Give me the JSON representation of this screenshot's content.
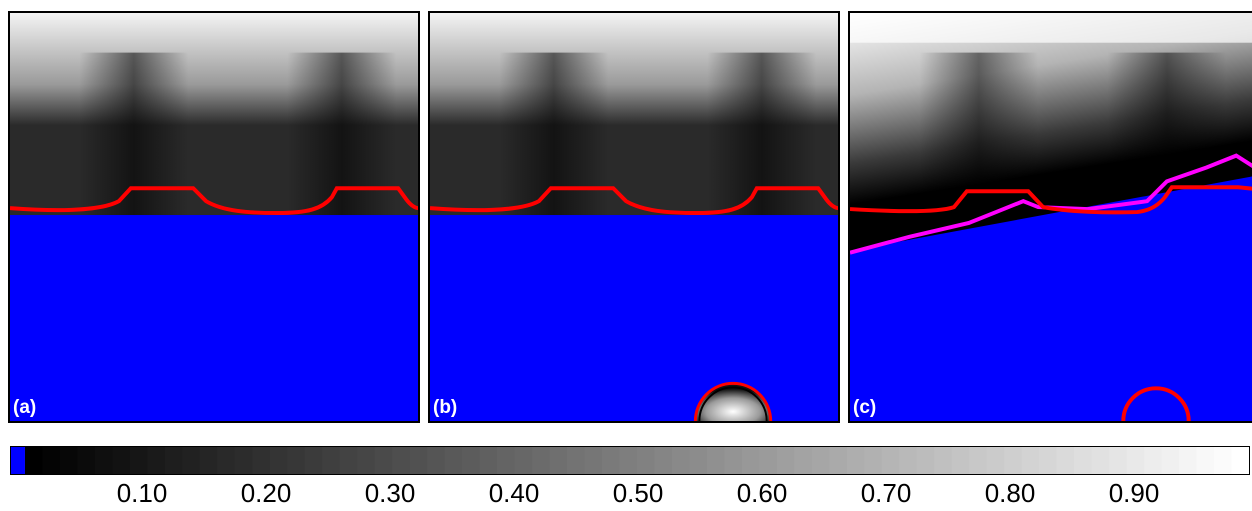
{
  "panels": [
    {
      "label": "(a)"
    },
    {
      "label": "(b)"
    },
    {
      "label": "(c)"
    }
  ],
  "colorbar": {
    "ticks": [
      {
        "value": 0.1,
        "label": "0.10"
      },
      {
        "value": 0.2,
        "label": "0.20"
      },
      {
        "value": 0.3,
        "label": "0.30"
      },
      {
        "value": 0.4,
        "label": "0.40"
      },
      {
        "value": 0.5,
        "label": "0.50"
      },
      {
        "value": 0.6,
        "label": "0.60"
      },
      {
        "value": 0.7,
        "label": "0.70"
      },
      {
        "value": 0.8,
        "label": "0.80"
      },
      {
        "value": 0.9,
        "label": "0.90"
      }
    ],
    "range": [
      0.0,
      1.0
    ],
    "low_color": "#0000ff"
  },
  "colors": {
    "region": "#0000ff",
    "contour_primary": "#ff0000",
    "contour_secondary": "#ff00ff",
    "border": "#000000"
  }
}
